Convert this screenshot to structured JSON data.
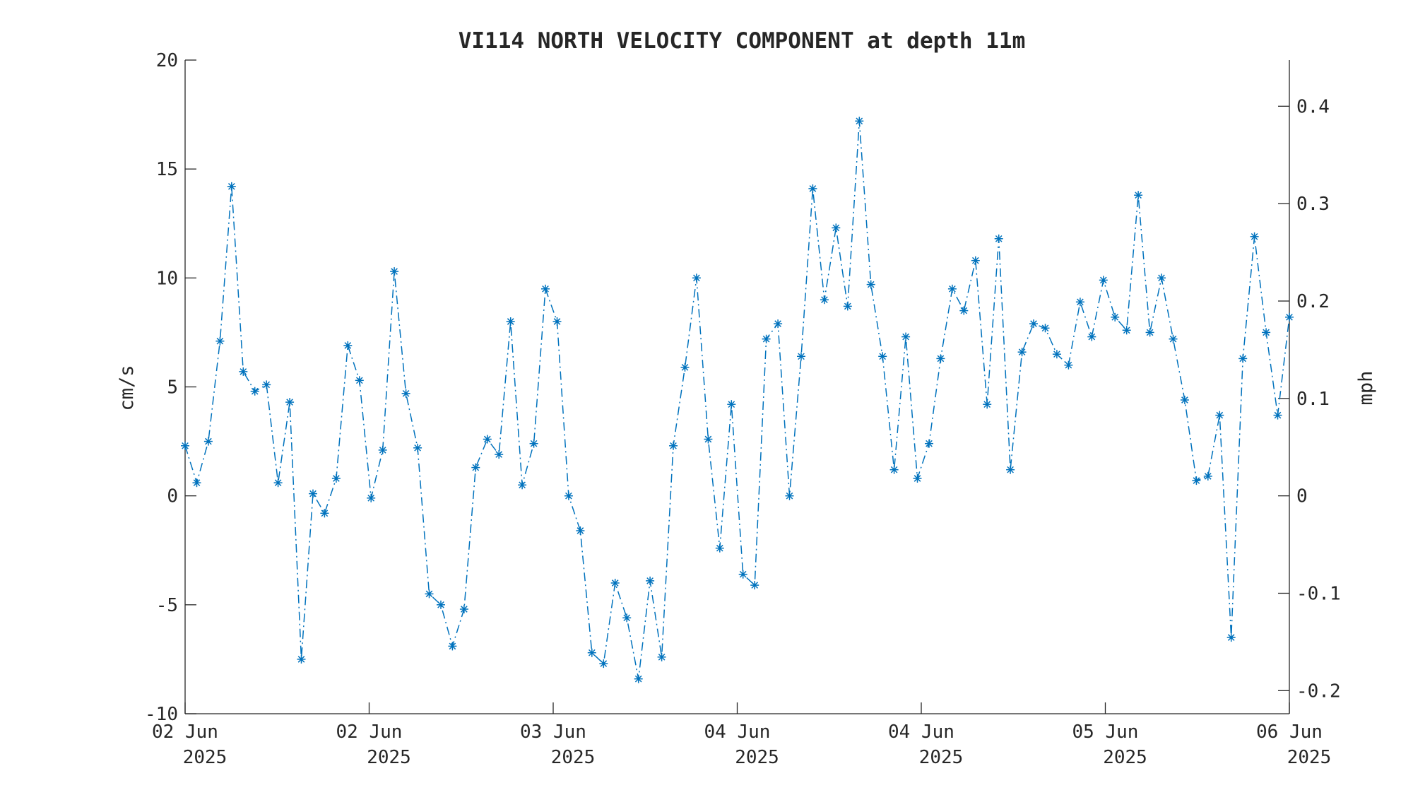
{
  "chart_data": {
    "type": "line",
    "title": "VI114 NORTH VELOCITY COMPONENT at depth 11m",
    "ylabel_left": "cm/s",
    "ylabel_right": "mph",
    "ylim_left": [
      -10,
      20
    ],
    "ylim_right": [
      -0.2237,
      0.4474
    ],
    "yticks_left": [
      "-10",
      "-5",
      "0",
      "5",
      "10",
      "15",
      "20"
    ],
    "yticks_right": [
      "-0.2",
      "-0.1",
      "0",
      "0.1",
      "0.2",
      "0.3",
      "0.4"
    ],
    "xticks": [
      {
        "line1": "02 Jun",
        "line2": "2025"
      },
      {
        "line1": "02 Jun",
        "line2": "2025"
      },
      {
        "line1": "03 Jun",
        "line2": "2025"
      },
      {
        "line1": "04 Jun",
        "line2": "2025"
      },
      {
        "line1": "04 Jun",
        "line2": "2025"
      },
      {
        "line1": "05 Jun",
        "line2": "2025"
      },
      {
        "line1": "06 Jun",
        "line2": "2025"
      }
    ],
    "x_start": "2025-06-02 00:00",
    "x_end": "2025-06-06 00:00",
    "sample_interval_hours": 1,
    "series": [
      {
        "name": "",
        "color": "#0072BD",
        "line_style": "dash-dot",
        "marker": "asterisk",
        "values": [
          2.3,
          0.6,
          2.5,
          7.1,
          14.2,
          5.7,
          4.8,
          5.1,
          0.6,
          4.3,
          -7.5,
          0.1,
          -0.8,
          0.8,
          6.9,
          5.3,
          -0.1,
          2.1,
          10.3,
          4.7,
          2.2,
          -4.5,
          -5.0,
          -6.9,
          -5.2,
          1.3,
          2.6,
          1.9,
          8.0,
          0.5,
          2.4,
          9.5,
          8.0,
          0.0,
          -1.6,
          -7.2,
          -7.7,
          -4.0,
          -5.6,
          -8.4,
          -3.9,
          -7.4,
          2.3,
          5.9,
          10.0,
          2.6,
          -2.4,
          4.2,
          -3.6,
          -4.1,
          7.2,
          7.9,
          0.0,
          6.4,
          14.1,
          9.0,
          12.3,
          8.7,
          17.2,
          9.7,
          6.4,
          1.2,
          7.3,
          0.8,
          2.4,
          6.3,
          9.5,
          8.5,
          10.8,
          4.2,
          11.8,
          1.2,
          6.6,
          7.9,
          7.7,
          6.5,
          6.0,
          8.9,
          7.3,
          9.9,
          8.2,
          7.6,
          13.8,
          7.5,
          10.0,
          7.2,
          4.4,
          0.7,
          0.9,
          3.7,
          -6.5,
          6.3,
          11.9,
          7.5,
          3.7,
          8.2
        ]
      }
    ],
    "grid": false
  }
}
